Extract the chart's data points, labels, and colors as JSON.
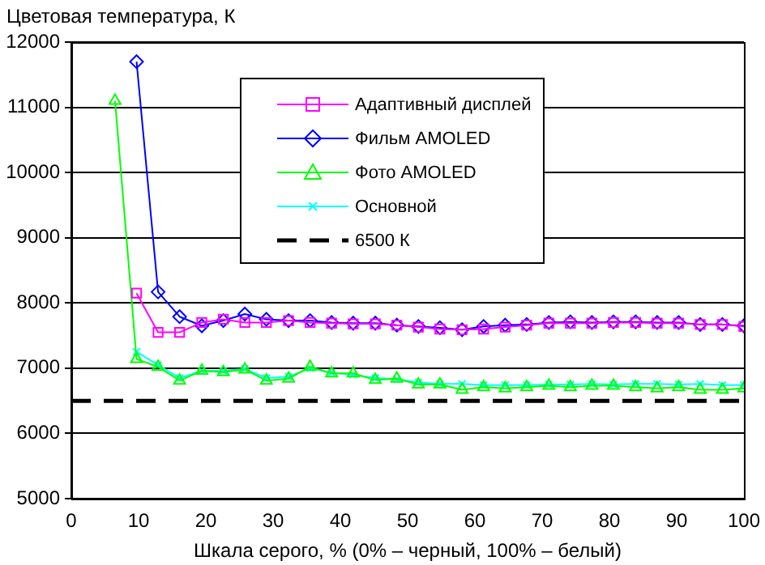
{
  "chart_data": {
    "type": "line",
    "ylabel": "Цветовая температура, К",
    "xlabel": "Шкала серого, % (0% – черный, 100% – белый)",
    "x": [
      6.5,
      9.7,
      12.9,
      16.1,
      19.4,
      22.6,
      25.8,
      29.0,
      32.3,
      35.5,
      38.7,
      41.9,
      45.2,
      48.4,
      51.6,
      54.8,
      58.1,
      61.3,
      64.5,
      67.7,
      71.0,
      74.2,
      77.4,
      80.6,
      83.9,
      87.1,
      90.3,
      93.5,
      96.8,
      100
    ],
    "series": [
      {
        "name": "Адаптивный дисплей",
        "color": "#ff00ff",
        "marker": "square",
        "values": [
          null,
          8150,
          7550,
          7550,
          7700,
          7750,
          7700,
          7700,
          7730,
          7700,
          7690,
          7680,
          7680,
          7660,
          7630,
          7600,
          7590,
          7600,
          7630,
          7660,
          7690,
          7690,
          7690,
          7700,
          7700,
          7690,
          7690,
          7670,
          7670,
          7640
        ]
      },
      {
        "name": "Фильм AMOLED",
        "color": "#0000ff",
        "marker": "diamond",
        "values": [
          null,
          11700,
          8170,
          7790,
          7650,
          7730,
          7830,
          7750,
          7730,
          7730,
          7700,
          7690,
          7690,
          7660,
          7640,
          7620,
          7590,
          7640,
          7660,
          7670,
          7700,
          7710,
          7700,
          7710,
          7710,
          7700,
          7700,
          7670,
          7670,
          7650
        ]
      },
      {
        "name": "Фото AMOLED",
        "color": "#00ff00",
        "marker": "triangle",
        "values": [
          11100,
          7140,
          7020,
          6810,
          6960,
          6940,
          6980,
          6810,
          6840,
          7020,
          6920,
          6920,
          6820,
          6840,
          6750,
          6750,
          6670,
          6710,
          6690,
          6710,
          6730,
          6710,
          6730,
          6730,
          6710,
          6690,
          6710,
          6670,
          6670,
          6690
        ]
      },
      {
        "name": "Основной",
        "color": "#00ffff",
        "marker": "cross",
        "values": [
          null,
          7250,
          7050,
          6850,
          6960,
          6960,
          6990,
          6850,
          6870,
          7000,
          6930,
          6900,
          6850,
          6830,
          6780,
          6760,
          6760,
          6740,
          6740,
          6740,
          6750,
          6750,
          6760,
          6750,
          6760,
          6760,
          6750,
          6760,
          6740,
          6740
        ]
      }
    ],
    "ref_lines": [
      {
        "axis": "y",
        "value": 6500,
        "label": "6500 К",
        "color": "#000000",
        "line_style": "dashed"
      }
    ],
    "xlim": [
      0,
      100
    ],
    "xticks": [
      0,
      10,
      20,
      30,
      40,
      50,
      60,
      70,
      80,
      90,
      100
    ],
    "ylim": [
      5000,
      12000
    ],
    "yticks": [
      5000,
      6000,
      7000,
      8000,
      9000,
      10000,
      11000,
      12000
    ],
    "grid": "y",
    "legend": "top right"
  }
}
